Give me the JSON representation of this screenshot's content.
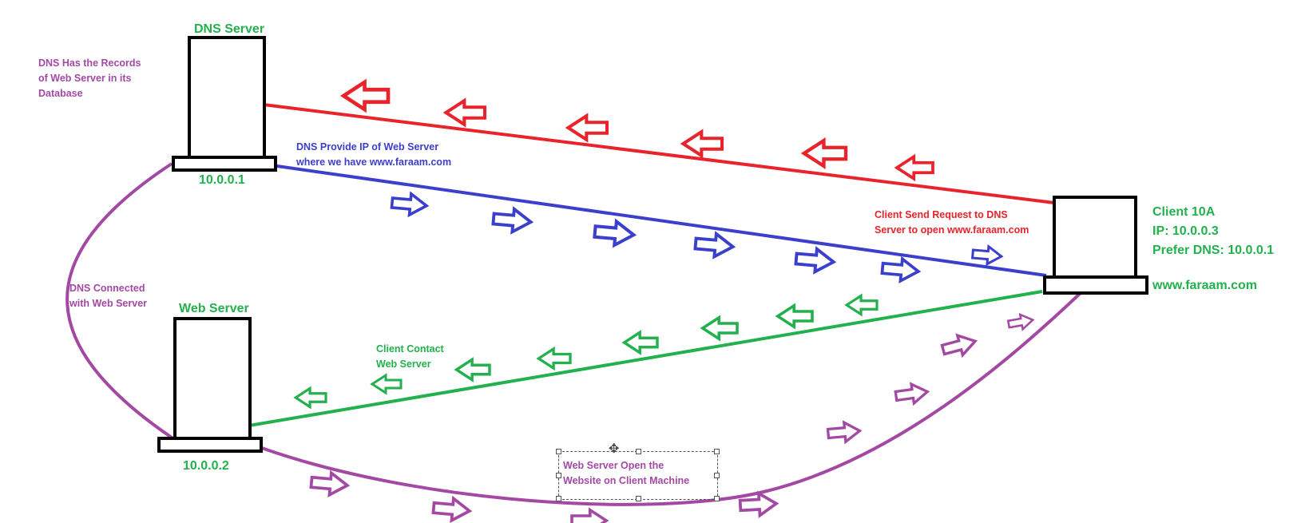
{
  "nodes": {
    "dns": {
      "title": "DNS Server",
      "ip": "10.0.0.1"
    },
    "web": {
      "title": "Web Server",
      "ip": "10.0.0.2"
    },
    "client": {
      "lines": [
        "Client 10A",
        "IP: 10.0.0.3",
        "Prefer DNS: 10.0.0.1"
      ],
      "site": "www.faraam.com"
    }
  },
  "notes": {
    "dns_records": [
      "DNS Has the Records",
      "of Web Server in its",
      "Database"
    ],
    "dns_connected": [
      "DNS Connected",
      "with Web Server"
    ],
    "dns_provide": [
      "DNS Provide IP of Web Server",
      "where we have www.faraam.com"
    ],
    "client_request": [
      "Client Send Request to DNS",
      "Server to open www.faraam.com"
    ],
    "client_contact": [
      "Client Contact",
      "Web Server"
    ],
    "web_open": [
      "Web Server Open the",
      "Website on Client Machine"
    ]
  },
  "colors": {
    "red": "#e8232b",
    "blue": "#3a3fcc",
    "green": "#22b14c",
    "purple": "#a349a4",
    "black": "#000000"
  },
  "icons": {
    "move": "move-cursor-icon"
  }
}
